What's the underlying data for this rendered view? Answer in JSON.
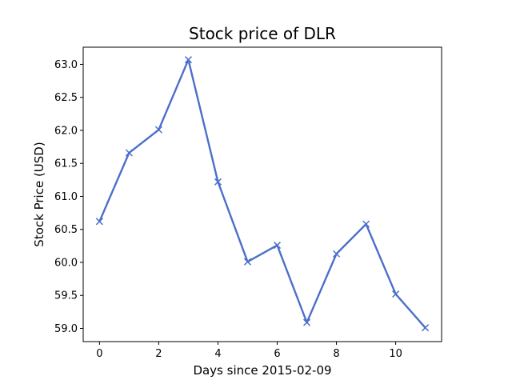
{
  "chart_data": {
    "type": "line",
    "title": "Stock price of DLR",
    "xlabel": "Days since 2015-02-09",
    "ylabel": "Stock Price (USD)",
    "x": [
      0,
      1,
      2,
      3,
      4,
      5,
      6,
      7,
      8,
      9,
      10,
      11
    ],
    "series": [
      {
        "values": [
          60.62,
          61.66,
          62.01,
          63.07,
          61.22,
          60.01,
          60.26,
          59.09,
          60.13,
          60.58,
          59.52,
          59.01
        ],
        "color": "#4c6fc9",
        "marker": "x"
      }
    ],
    "xlim": [
      -0.55,
      11.55
    ],
    "ylim": [
      58.8,
      63.26
    ],
    "x_ticks": [
      0,
      2,
      4,
      6,
      8,
      10
    ],
    "x_tick_labels": [
      "0",
      "2",
      "4",
      "6",
      "8",
      "10"
    ],
    "y_ticks": [
      59.0,
      59.5,
      60.0,
      60.5,
      61.0,
      61.5,
      62.0,
      62.5,
      63.0
    ],
    "y_tick_labels": [
      "59.0",
      "59.5",
      "60.0",
      "60.5",
      "61.0",
      "61.5",
      "62.0",
      "62.5",
      "63.0"
    ],
    "grid": false,
    "legend": "none"
  }
}
